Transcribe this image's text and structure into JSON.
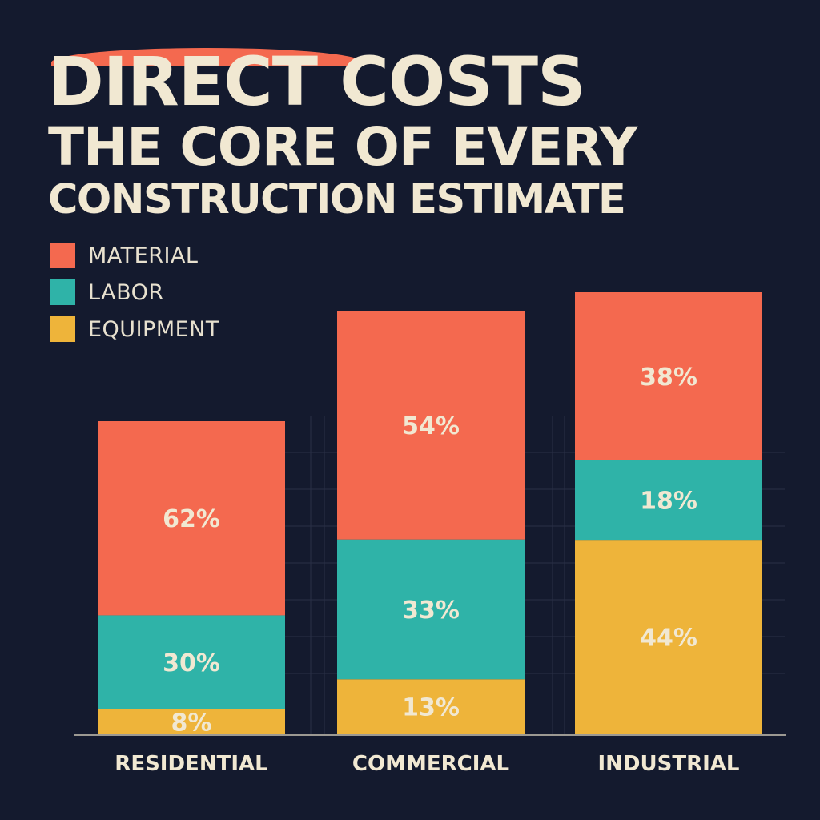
{
  "title": {
    "line1": "DIRECT COSTS",
    "line2": "THE CORE OF EVERY",
    "line3": "CONSTRUCTION ESTIMATE"
  },
  "colors": {
    "background": "#141a2e",
    "material": "#f4694f",
    "labor": "#2fb3a8",
    "equipment": "#eeb43a",
    "text": "#f1e8d2"
  },
  "legend": [
    {
      "label": "MATERIAL",
      "color": "#f4694f"
    },
    {
      "label": "LABOR",
      "color": "#2fb3a8"
    },
    {
      "label": "EQUIPMENT",
      "color": "#eeb43a"
    }
  ],
  "chart_data": {
    "type": "bar",
    "stacked": true,
    "categories": [
      "RESIDENTIAL",
      "COMMERCIAL",
      "INDUSTRIAL"
    ],
    "series": [
      {
        "name": "EQUIPMENT",
        "values": [
          8,
          13,
          44
        ],
        "labels": [
          "8%",
          "13%",
          "44%"
        ],
        "color": "#eeb43a"
      },
      {
        "name": "LABOR",
        "values": [
          30,
          33,
          18
        ],
        "labels": [
          "30%",
          "33%",
          "18%"
        ],
        "color": "#2fb3a8"
      },
      {
        "name": "MATERIAL",
        "values": [
          62,
          54,
          38
        ],
        "labels": [
          "62%",
          "54%",
          "38%"
        ],
        "color": "#f4694f"
      }
    ],
    "totals": [
      100,
      100,
      100
    ],
    "bar_scale_relative": [
      0.68,
      0.92,
      0.96
    ],
    "legend_position": "top-left",
    "grid": true
  }
}
